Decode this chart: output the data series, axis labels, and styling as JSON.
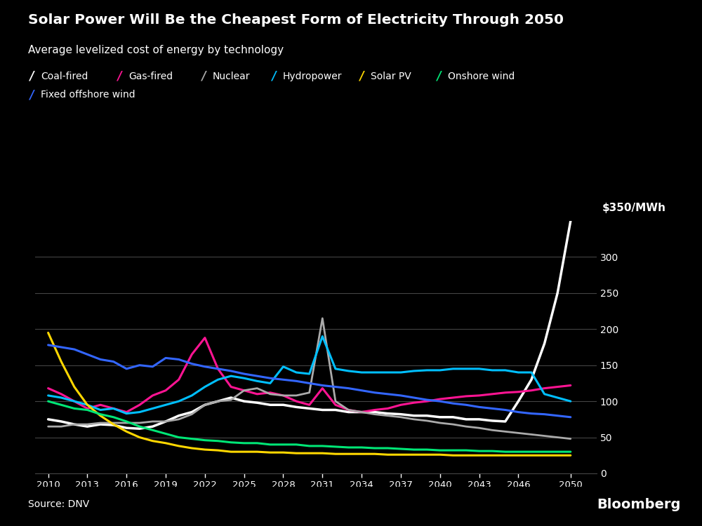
{
  "title": "Solar Power Will Be the Cheapest Form of Electricity Through 2050",
  "subtitle": "Average levelized cost of energy by technology",
  "source": "Source: DNV",
  "branding": "Bloomberg",
  "background_color": "#000000",
  "text_color": "#ffffff",
  "grid_color": "#444444",
  "ylabel": "$350/MWh",
  "ylim": [
    0,
    350
  ],
  "yticks": [
    0,
    50,
    100,
    150,
    200,
    250,
    300
  ],
  "xticks": [
    2010,
    2013,
    2016,
    2019,
    2022,
    2025,
    2028,
    2031,
    2034,
    2037,
    2040,
    2043,
    2046,
    2050
  ],
  "series": [
    {
      "name": "Coal-fired",
      "color": "#ffffff",
      "lw": 2.5,
      "years": [
        2010,
        2011,
        2012,
        2013,
        2014,
        2015,
        2016,
        2017,
        2018,
        2019,
        2020,
        2021,
        2022,
        2023,
        2024,
        2025,
        2026,
        2027,
        2028,
        2029,
        2030,
        2031,
        2032,
        2033,
        2034,
        2035,
        2036,
        2037,
        2038,
        2039,
        2040,
        2041,
        2042,
        2043,
        2044,
        2045,
        2046,
        2047,
        2048,
        2049,
        2050
      ],
      "values": [
        75,
        72,
        68,
        65,
        68,
        67,
        63,
        62,
        65,
        72,
        80,
        85,
        95,
        100,
        105,
        100,
        98,
        95,
        95,
        92,
        90,
        88,
        88,
        85,
        85,
        85,
        83,
        82,
        80,
        80,
        78,
        78,
        75,
        75,
        73,
        72,
        100,
        130,
        180,
        250,
        350
      ]
    },
    {
      "name": "Gas-fired",
      "color": "#ff1493",
      "lw": 2.2,
      "years": [
        2010,
        2011,
        2012,
        2013,
        2014,
        2015,
        2016,
        2017,
        2018,
        2019,
        2020,
        2021,
        2022,
        2023,
        2024,
        2025,
        2026,
        2027,
        2028,
        2029,
        2030,
        2031,
        2032,
        2033,
        2034,
        2035,
        2036,
        2037,
        2038,
        2039,
        2040,
        2041,
        2042,
        2043,
        2044,
        2045,
        2046,
        2047,
        2048,
        2049,
        2050
      ],
      "values": [
        118,
        110,
        100,
        90,
        95,
        90,
        85,
        95,
        108,
        115,
        130,
        165,
        188,
        145,
        120,
        115,
        110,
        112,
        108,
        100,
        95,
        118,
        95,
        88,
        85,
        88,
        90,
        95,
        98,
        100,
        103,
        105,
        107,
        108,
        110,
        112,
        113,
        115,
        118,
        120,
        122
      ]
    },
    {
      "name": "Nuclear",
      "color": "#aaaaaa",
      "lw": 2.0,
      "years": [
        2010,
        2011,
        2012,
        2013,
        2014,
        2015,
        2016,
        2017,
        2018,
        2019,
        2020,
        2021,
        2022,
        2023,
        2024,
        2025,
        2026,
        2027,
        2028,
        2029,
        2030,
        2031,
        2032,
        2033,
        2034,
        2035,
        2036,
        2037,
        2038,
        2039,
        2040,
        2041,
        2042,
        2043,
        2044,
        2045,
        2046,
        2047,
        2048,
        2049,
        2050
      ],
      "values": [
        65,
        65,
        68,
        68,
        70,
        70,
        70,
        70,
        72,
        72,
        75,
        82,
        95,
        100,
        102,
        115,
        118,
        110,
        108,
        108,
        112,
        215,
        100,
        88,
        85,
        82,
        80,
        78,
        75,
        73,
        70,
        68,
        65,
        63,
        60,
        58,
        56,
        54,
        52,
        50,
        48
      ]
    },
    {
      "name": "Hydropower",
      "color": "#00bfff",
      "lw": 2.2,
      "years": [
        2010,
        2011,
        2012,
        2013,
        2014,
        2015,
        2016,
        2017,
        2018,
        2019,
        2020,
        2021,
        2022,
        2023,
        2024,
        2025,
        2026,
        2027,
        2028,
        2029,
        2030,
        2031,
        2032,
        2033,
        2034,
        2035,
        2036,
        2037,
        2038,
        2039,
        2040,
        2041,
        2042,
        2043,
        2044,
        2045,
        2046,
        2047,
        2048,
        2049,
        2050
      ],
      "values": [
        108,
        105,
        100,
        95,
        88,
        90,
        83,
        85,
        90,
        95,
        100,
        108,
        120,
        130,
        135,
        132,
        128,
        125,
        148,
        140,
        138,
        190,
        145,
        142,
        140,
        140,
        140,
        140,
        142,
        143,
        143,
        145,
        145,
        145,
        143,
        143,
        140,
        140,
        110,
        105,
        100
      ]
    },
    {
      "name": "Solar PV",
      "color": "#ffd700",
      "lw": 2.2,
      "years": [
        2010,
        2011,
        2012,
        2013,
        2014,
        2015,
        2016,
        2017,
        2018,
        2019,
        2020,
        2021,
        2022,
        2023,
        2024,
        2025,
        2026,
        2027,
        2028,
        2029,
        2030,
        2031,
        2032,
        2033,
        2034,
        2035,
        2036,
        2037,
        2038,
        2039,
        2040,
        2041,
        2042,
        2043,
        2044,
        2045,
        2046,
        2047,
        2048,
        2049,
        2050
      ],
      "values": [
        195,
        155,
        120,
        95,
        80,
        68,
        58,
        50,
        45,
        42,
        38,
        35,
        33,
        32,
        30,
        30,
        30,
        29,
        29,
        28,
        28,
        28,
        27,
        27,
        27,
        27,
        26,
        26,
        26,
        26,
        26,
        25,
        25,
        25,
        25,
        25,
        25,
        25,
        25,
        25,
        25
      ]
    },
    {
      "name": "Onshore wind",
      "color": "#00e676",
      "lw": 2.2,
      "years": [
        2010,
        2011,
        2012,
        2013,
        2014,
        2015,
        2016,
        2017,
        2018,
        2019,
        2020,
        2021,
        2022,
        2023,
        2024,
        2025,
        2026,
        2027,
        2028,
        2029,
        2030,
        2031,
        2032,
        2033,
        2034,
        2035,
        2036,
        2037,
        2038,
        2039,
        2040,
        2041,
        2042,
        2043,
        2044,
        2045,
        2046,
        2047,
        2048,
        2049,
        2050
      ],
      "values": [
        100,
        95,
        90,
        88,
        82,
        78,
        72,
        65,
        60,
        55,
        50,
        48,
        46,
        45,
        43,
        42,
        42,
        40,
        40,
        40,
        38,
        38,
        37,
        36,
        36,
        35,
        35,
        34,
        33,
        33,
        32,
        32,
        32,
        31,
        31,
        30,
        30,
        30,
        30,
        30,
        30
      ]
    },
    {
      "name": "Fixed offshore wind",
      "color": "#3366ff",
      "lw": 2.2,
      "years": [
        2010,
        2011,
        2012,
        2013,
        2014,
        2015,
        2016,
        2017,
        2018,
        2019,
        2020,
        2021,
        2022,
        2023,
        2024,
        2025,
        2026,
        2027,
        2028,
        2029,
        2030,
        2031,
        2032,
        2033,
        2034,
        2035,
        2036,
        2037,
        2038,
        2039,
        2040,
        2041,
        2042,
        2043,
        2044,
        2045,
        2046,
        2047,
        2048,
        2049,
        2050
      ],
      "values": [
        178,
        175,
        172,
        165,
        158,
        155,
        145,
        150,
        148,
        160,
        158,
        152,
        148,
        145,
        142,
        138,
        135,
        132,
        130,
        128,
        125,
        122,
        120,
        118,
        115,
        112,
        110,
        108,
        105,
        102,
        100,
        97,
        95,
        92,
        90,
        88,
        85,
        83,
        82,
        80,
        78
      ]
    }
  ],
  "legend_row1": [
    {
      "name": "Coal-fired",
      "color": "#ffffff"
    },
    {
      "name": "Gas-fired",
      "color": "#ff1493"
    },
    {
      "name": "Nuclear",
      "color": "#aaaaaa"
    },
    {
      "name": "Hydropower",
      "color": "#00bfff"
    },
    {
      "name": "Solar PV",
      "color": "#ffd700"
    },
    {
      "name": "Onshore wind",
      "color": "#00e676"
    }
  ],
  "legend_row2": [
    {
      "name": "Fixed offshore wind",
      "color": "#3366ff"
    }
  ]
}
